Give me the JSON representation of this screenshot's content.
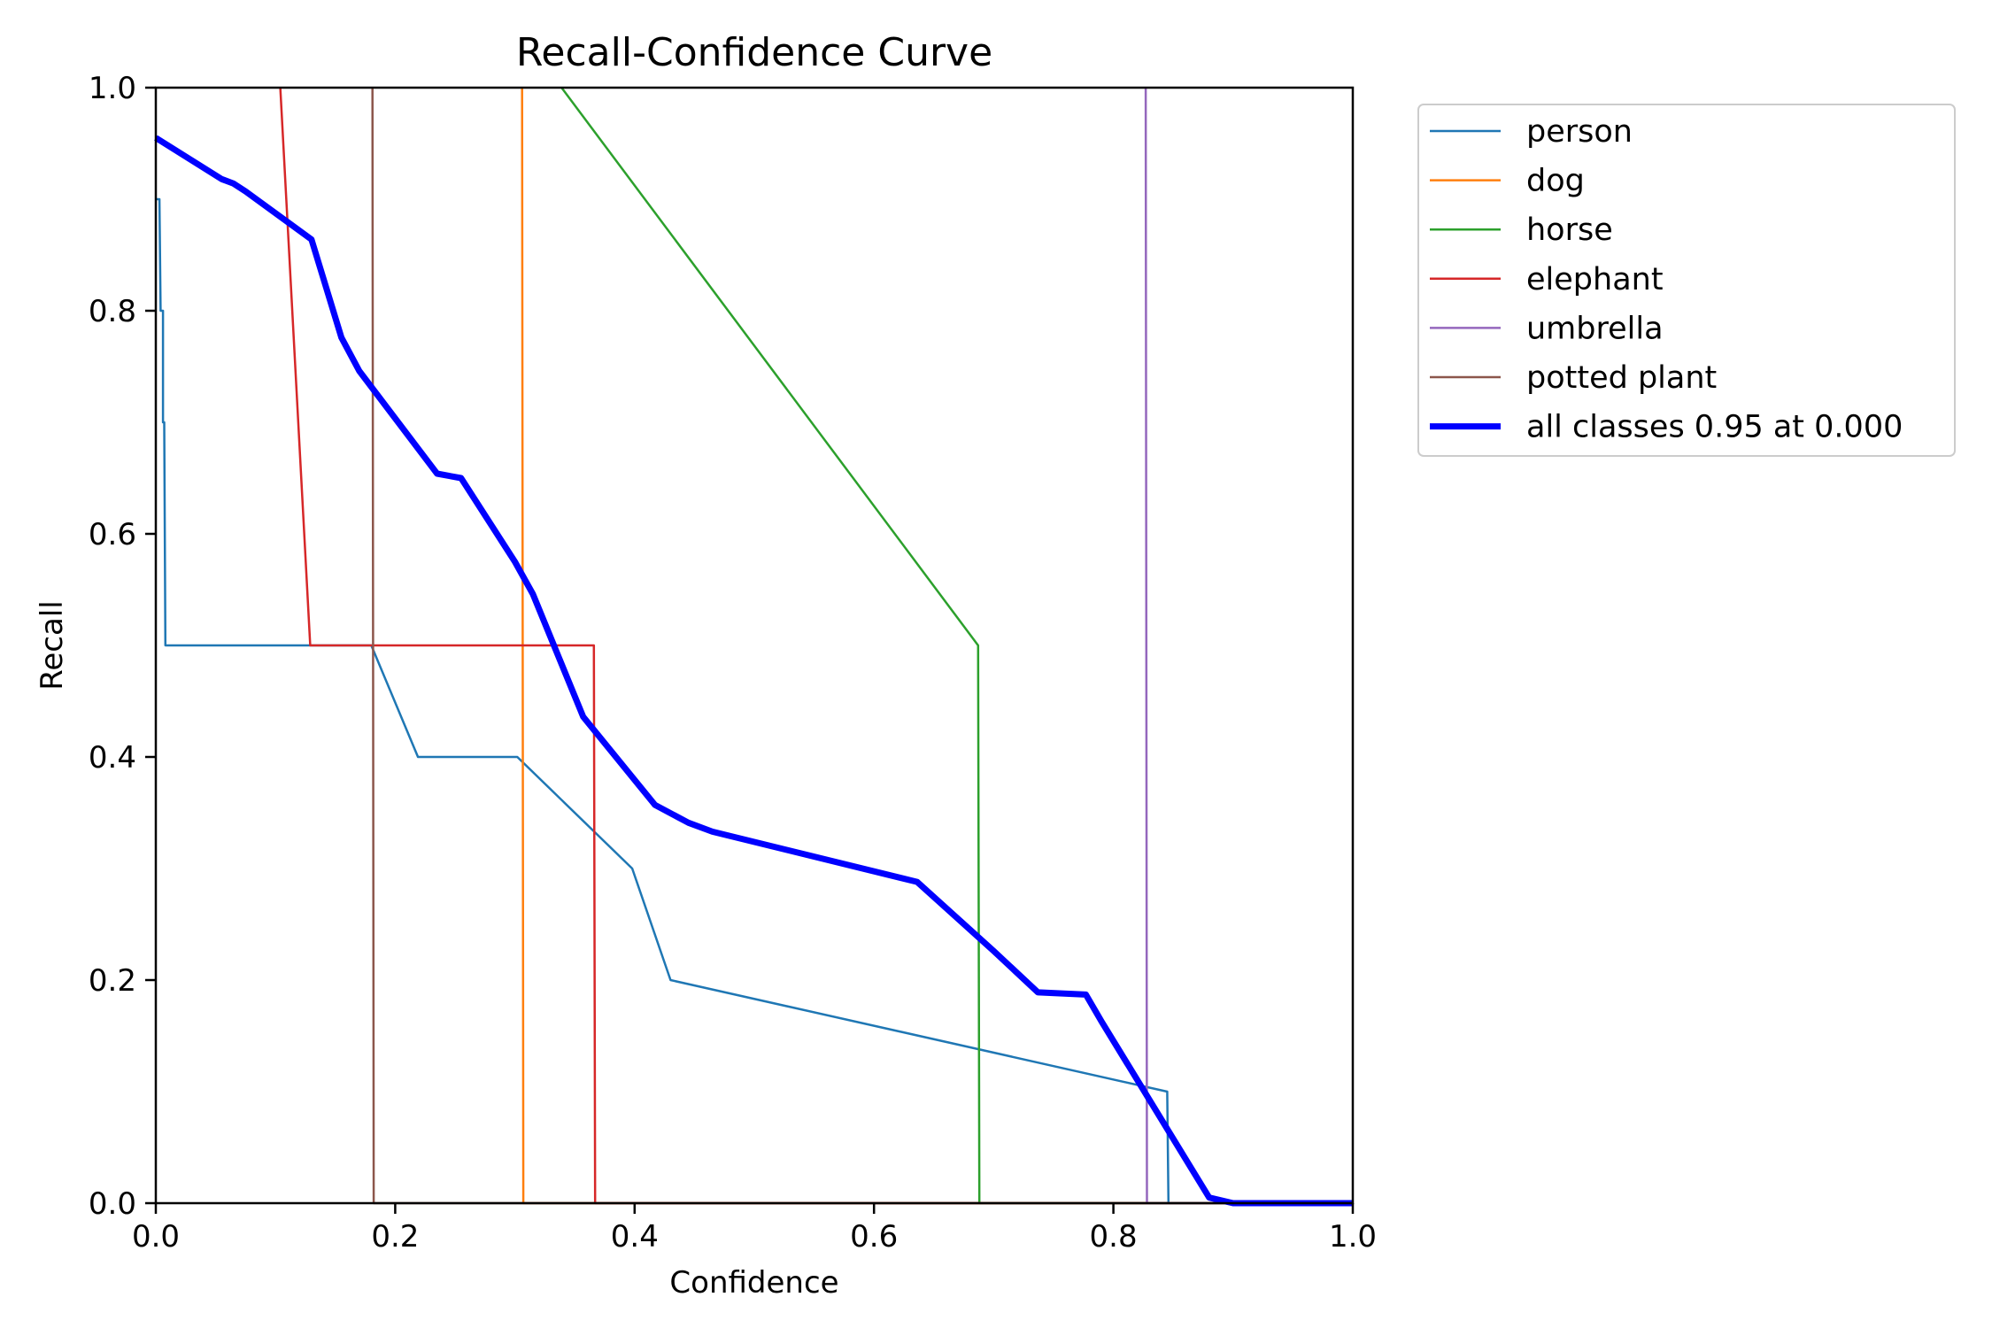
{
  "chart_data": {
    "type": "line",
    "title": "Recall-Confidence Curve",
    "xlabel": "Confidence",
    "ylabel": "Recall",
    "xlim": [
      0,
      1
    ],
    "ylim": [
      0,
      1
    ],
    "x_ticks": [
      "0.0",
      "0.2",
      "0.4",
      "0.6",
      "0.8",
      "1.0"
    ],
    "y_ticks": [
      "0.0",
      "0.2",
      "0.4",
      "0.6",
      "0.8",
      "1.0"
    ],
    "grid": false,
    "legend_position": "outside-upper-right",
    "series": [
      {
        "name": "person",
        "color": "#1f77b4",
        "points": [
          [
            0.0,
            0.9
          ],
          [
            0.003,
            0.9
          ],
          [
            0.004,
            0.8
          ],
          [
            0.006,
            0.8
          ],
          [
            0.006,
            0.7
          ],
          [
            0.007,
            0.7
          ],
          [
            0.008,
            0.5
          ],
          [
            0.18,
            0.5
          ],
          [
            0.219,
            0.4
          ],
          [
            0.302,
            0.4
          ],
          [
            0.398,
            0.3
          ],
          [
            0.43,
            0.2
          ],
          [
            0.845,
            0.1
          ],
          [
            0.846,
            0.0
          ],
          [
            1.0,
            0.0
          ]
        ]
      },
      {
        "name": "dog",
        "color": "#ff7f0e",
        "points": [
          [
            0.306,
            1.0
          ],
          [
            0.307,
            0.0
          ],
          [
            1.0,
            0.0
          ]
        ]
      },
      {
        "name": "horse",
        "color": "#2ca02c",
        "points": [
          [
            0.339,
            1.0
          ],
          [
            0.687,
            0.5
          ],
          [
            0.688,
            0.0
          ],
          [
            1.0,
            0.0
          ]
        ]
      },
      {
        "name": "elephant",
        "color": "#d62728",
        "points": [
          [
            0.104,
            1.0
          ],
          [
            0.129,
            0.5
          ],
          [
            0.366,
            0.5
          ],
          [
            0.367,
            0.0
          ],
          [
            1.0,
            0.0
          ]
        ]
      },
      {
        "name": "umbrella",
        "color": "#9467bd",
        "points": [
          [
            0.827,
            1.0
          ],
          [
            0.828,
            0.0
          ],
          [
            1.0,
            0.0
          ]
        ]
      },
      {
        "name": "potted plant",
        "color": "#8c564b",
        "points": [
          [
            0.181,
            1.0
          ],
          [
            0.182,
            0.0
          ],
          [
            1.0,
            0.0
          ]
        ]
      },
      {
        "name": "all classes 0.95 at 0.000",
        "color": "#0000ff",
        "points": [
          [
            0.0,
            0.955
          ],
          [
            0.055,
            0.918
          ],
          [
            0.065,
            0.914
          ],
          [
            0.075,
            0.907
          ],
          [
            0.13,
            0.864
          ],
          [
            0.155,
            0.776
          ],
          [
            0.17,
            0.746
          ],
          [
            0.235,
            0.654
          ],
          [
            0.255,
            0.65
          ],
          [
            0.3,
            0.575
          ],
          [
            0.315,
            0.546
          ],
          [
            0.357,
            0.436
          ],
          [
            0.417,
            0.357
          ],
          [
            0.445,
            0.341
          ],
          [
            0.465,
            0.333
          ],
          [
            0.636,
            0.288
          ],
          [
            0.7,
            0.226
          ],
          [
            0.737,
            0.189
          ],
          [
            0.777,
            0.187
          ],
          [
            0.79,
            0.163
          ],
          [
            0.88,
            0.005
          ],
          [
            0.9,
            0.0
          ],
          [
            1.0,
            0.0
          ]
        ]
      }
    ]
  }
}
